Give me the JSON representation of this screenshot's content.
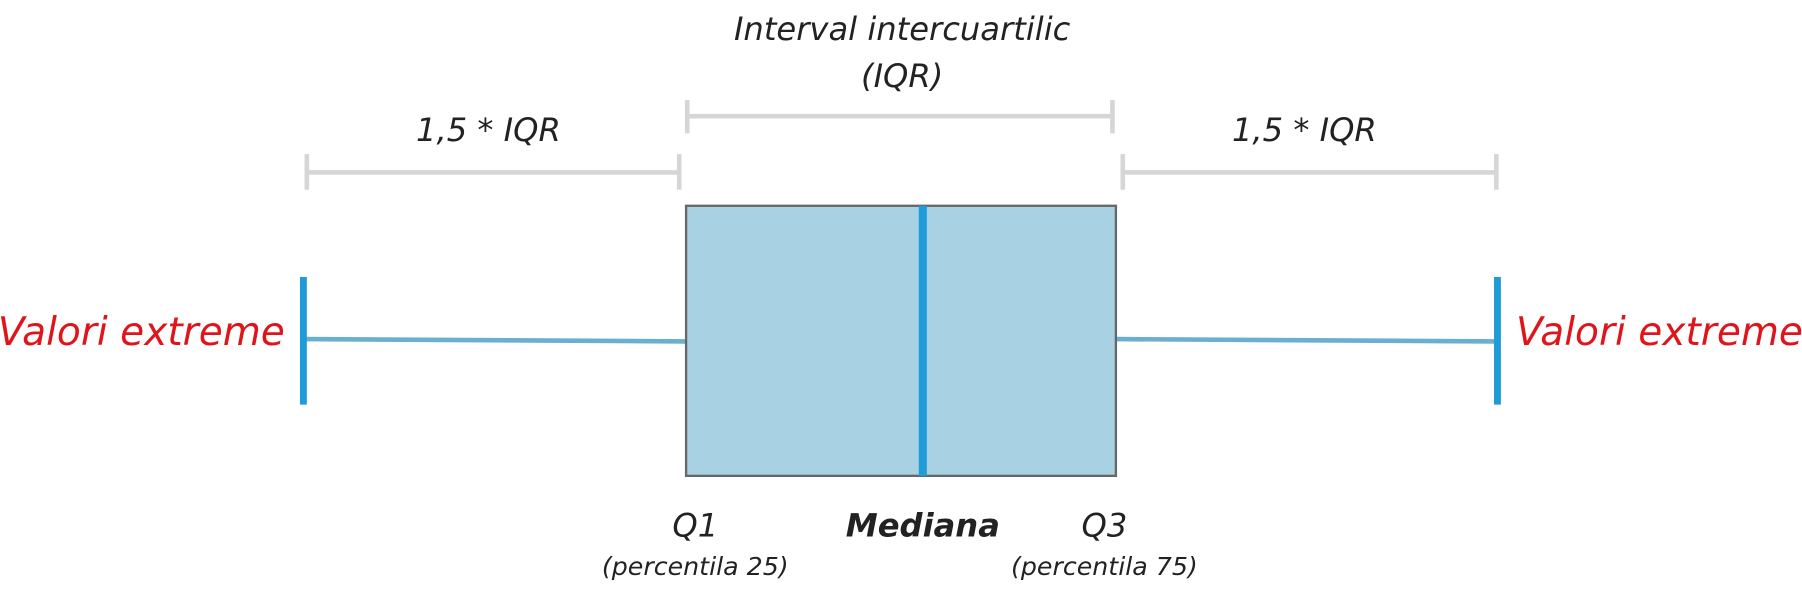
{
  "iqr": {
    "title": "Interval intercuartilic",
    "subtitle": "(IQR)"
  },
  "left_range": {
    "label": "1,5 * IQR"
  },
  "right_range": {
    "label": "1,5 * IQR"
  },
  "left_extreme": {
    "label": "Valori extreme"
  },
  "right_extreme": {
    "label": "Valori extreme"
  },
  "q1": {
    "label": "Q1",
    "note": "(percentila 25)"
  },
  "median": {
    "label": "Mediana"
  },
  "q3": {
    "label": "Q3",
    "note": "(percentila 75)"
  }
}
